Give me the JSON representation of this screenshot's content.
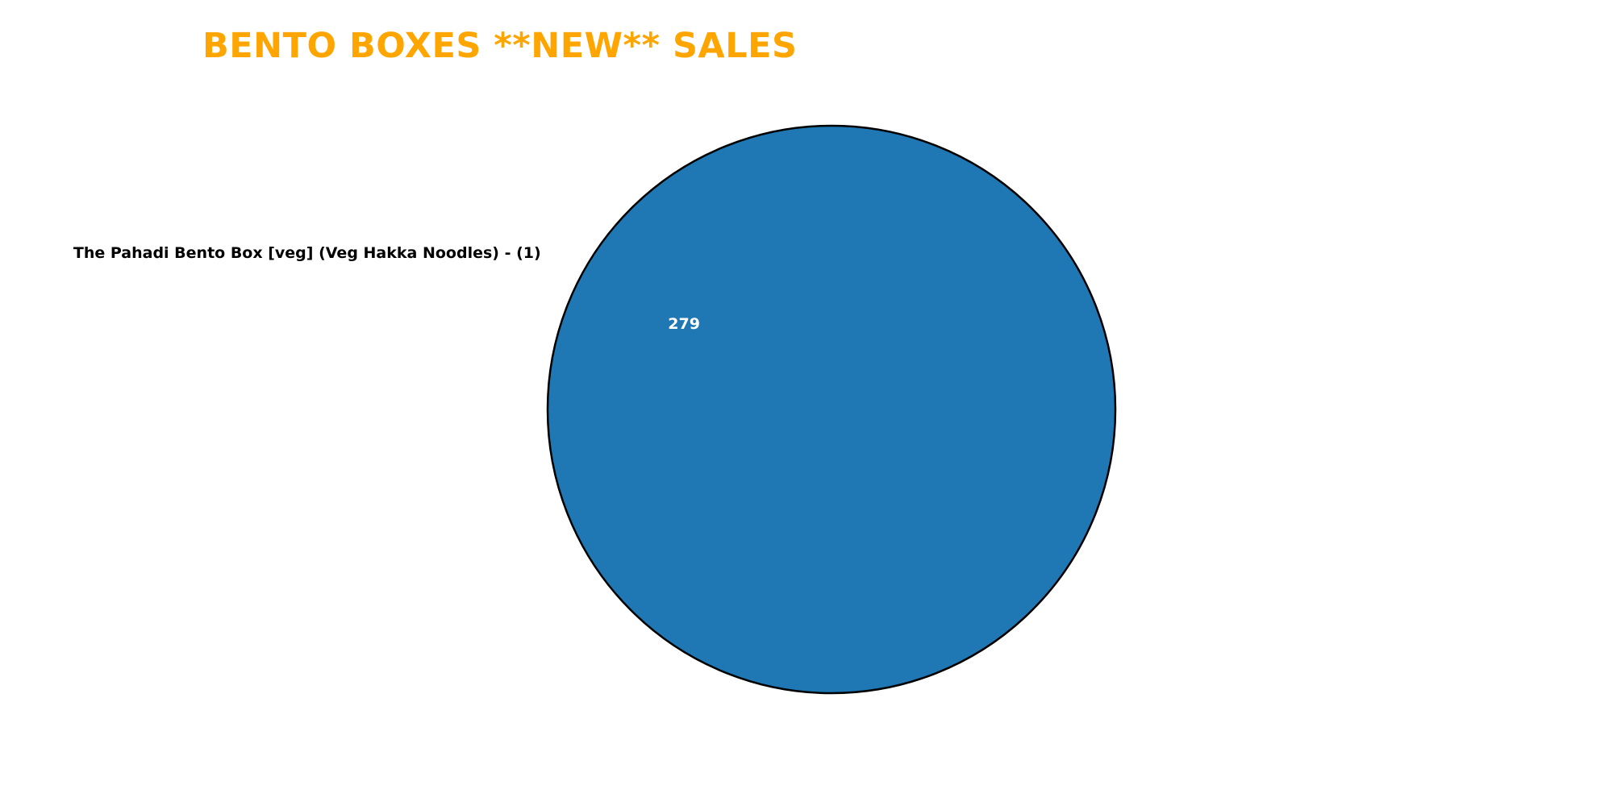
{
  "title_color": "#FFA500",
  "chart_data": {
    "type": "pie",
    "title": "BENTO BOXES **NEW** SALES",
    "slices": [
      {
        "label": "The Pahadi Bento Box [veg] (Veg Hakka Noodles) - (1)",
        "value": 279,
        "value_label": "279",
        "color": "#1F77B4"
      }
    ],
    "edge_color": "#000000",
    "value_label_color": "#FFFFFF",
    "slice_label_color": "#000000",
    "legend": "none"
  }
}
